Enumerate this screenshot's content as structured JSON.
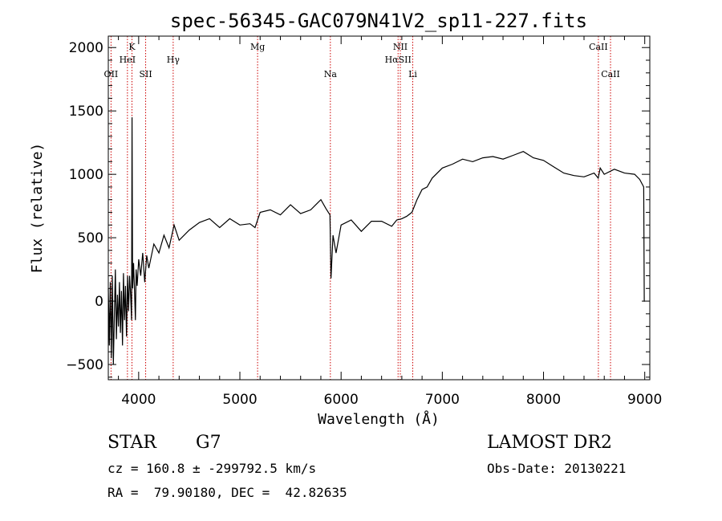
{
  "header": {
    "title": "spec-56345-GAC079N41V2_sp11-227.fits"
  },
  "chart_data": {
    "type": "line",
    "xlabel": "Wavelength (Å)",
    "ylabel": "Flux (relative)",
    "xlim": [
      3700,
      9050
    ],
    "ylim": [
      -620,
      2090
    ],
    "xticks": [
      4000,
      5000,
      6000,
      7000,
      8000,
      9000
    ],
    "yticks": [
      -500,
      0,
      500,
      1000,
      1500,
      2000
    ],
    "grid": false,
    "line_color": "#000000",
    "marker_color": "#cc0000",
    "markers": [
      {
        "label": "OII",
        "x": 3727,
        "row": 3
      },
      {
        "label": "K",
        "x": 3934,
        "row": 1
      },
      {
        "label": "HeI",
        "x": 3889,
        "row": 2
      },
      {
        "label": "SII",
        "x": 4069,
        "row": 3
      },
      {
        "label": "Hγ",
        "x": 4341,
        "row": 2
      },
      {
        "label": "Mg",
        "x": 5175,
        "row": 1
      },
      {
        "label": "Na",
        "x": 5894,
        "row": 3
      },
      {
        "label": "NII",
        "x": 6585,
        "row": 1
      },
      {
        "label": "HαSII",
        "x": 6563,
        "row": 2
      },
      {
        "label": "Li",
        "x": 6708,
        "row": 3
      },
      {
        "label": "CaII",
        "x": 8542,
        "row": 1
      },
      {
        "label": "CaII",
        "x": 8662,
        "row": 3
      }
    ],
    "series": [
      {
        "x": [
          3700,
          3710,
          3720,
          3730,
          3740,
          3750,
          3760,
          3770,
          3780,
          3790,
          3800,
          3810,
          3820,
          3830,
          3840,
          3850,
          3860,
          3870,
          3880,
          3890,
          3900,
          3910,
          3920,
          3930,
          3935,
          3940,
          3950,
          3960,
          3968,
          3975,
          3985,
          4000,
          4020,
          4040,
          4060,
          4080,
          4100,
          4150,
          4200,
          4250,
          4300,
          4350,
          4400,
          4500,
          4600,
          4700,
          4800,
          4900,
          5000,
          5100,
          5150,
          5200,
          5300,
          5400,
          5500,
          5600,
          5700,
          5800,
          5850,
          5890,
          5900,
          5920,
          5950,
          6000,
          6100,
          6200,
          6300,
          6400,
          6500,
          6550,
          6600,
          6650,
          6700,
          6750,
          6800,
          6850,
          6900,
          7000,
          7100,
          7200,
          7300,
          7400,
          7500,
          7600,
          7700,
          7800,
          7900,
          8000,
          8100,
          8200,
          8300,
          8400,
          8500,
          8540,
          8560,
          8600,
          8700,
          8800,
          8900,
          8950,
          8990,
          8995,
          9000
        ],
        "y": [
          100,
          -350,
          150,
          -450,
          200,
          -500,
          -100,
          250,
          -300,
          50,
          -200,
          150,
          -250,
          80,
          -350,
          220,
          -150,
          120,
          -280,
          200,
          -80,
          200,
          50,
          -150,
          1450,
          100,
          300,
          60,
          -150,
          250,
          120,
          330,
          200,
          380,
          150,
          360,
          260,
          450,
          380,
          520,
          420,
          600,
          480,
          560,
          620,
          650,
          580,
          650,
          600,
          610,
          580,
          700,
          720,
          680,
          760,
          690,
          720,
          800,
          730,
          680,
          180,
          520,
          380,
          600,
          640,
          550,
          630,
          630,
          590,
          640,
          650,
          670,
          700,
          800,
          880,
          900,
          970,
          1050,
          1080,
          1120,
          1100,
          1130,
          1140,
          1120,
          1150,
          1180,
          1130,
          1110,
          1060,
          1010,
          990,
          980,
          1010,
          970,
          1050,
          1000,
          1040,
          1010,
          1000,
          960,
          900,
          0,
          0
        ]
      }
    ]
  },
  "info": {
    "class_label": "STAR",
    "subclass": "G7",
    "survey": "LAMOST DR2",
    "cz": "cz = 160.8 ± -299792.5 km/s",
    "obs_date": "Obs-Date: 20130221",
    "radec": "RA =  79.90180, DEC =  42.82635"
  }
}
